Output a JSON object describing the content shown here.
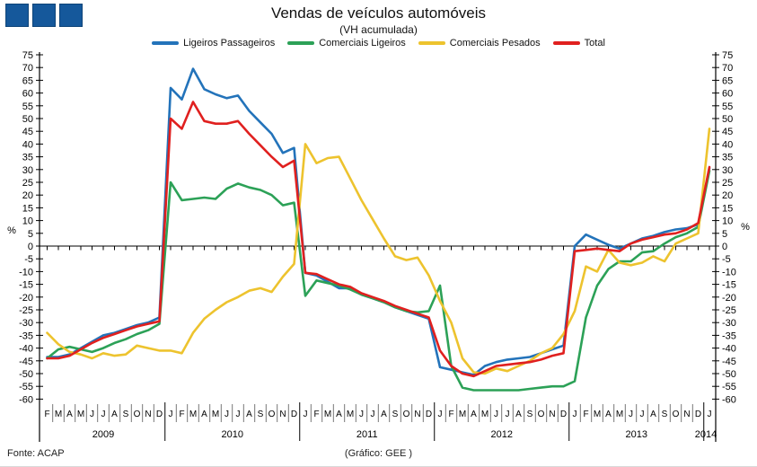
{
  "header": {
    "title": "Vendas de veículos automóveis",
    "subtitle": "(VH acumulada)"
  },
  "footer": {
    "source": "Fonte: ACAP",
    "credit": "(Gráfico: GEE )"
  },
  "logo": {
    "squares": 3,
    "color": "#15589B"
  },
  "chart_data": {
    "type": "line",
    "title": "Vendas de veículos automóveis",
    "subtitle": "(VH acumulada)",
    "ylabel": "%",
    "ylim": [
      -60,
      75
    ],
    "ytick_step": 5,
    "grid": "zero-line-only",
    "legend_position": "top-center",
    "x_months": [
      "F",
      "M",
      "A",
      "M",
      "J",
      "J",
      "A",
      "S",
      "O",
      "N",
      "D",
      "J",
      "F",
      "M",
      "A",
      "M",
      "J",
      "J",
      "A",
      "S",
      "O",
      "N",
      "D",
      "J",
      "F",
      "M",
      "A",
      "M",
      "J",
      "J",
      "A",
      "S",
      "O",
      "N",
      "D",
      "J",
      "F",
      "M",
      "A",
      "M",
      "J",
      "J",
      "A",
      "S",
      "O",
      "N",
      "D",
      "J",
      "F",
      "M",
      "A",
      "M",
      "J",
      "J",
      "A",
      "S",
      "O",
      "N",
      "D",
      "J"
    ],
    "year_groups": [
      {
        "label": "2009",
        "months": 11
      },
      {
        "label": "2010",
        "months": 12
      },
      {
        "label": "2011",
        "months": 12
      },
      {
        "label": "2012",
        "months": 12
      },
      {
        "label": "2013",
        "months": 12
      },
      {
        "label": "2014",
        "months": 1
      }
    ],
    "x_range": "Feb 2009 - Jan 2014",
    "series": [
      {
        "name": "Ligeiros Passageiros",
        "color": "#2373BA",
        "values": [
          -43.5,
          -43.5,
          -42.5,
          -40,
          -37.5,
          -35,
          -34,
          -32.5,
          -31,
          -30,
          -28,
          62,
          57.5,
          69.5,
          61.5,
          59.5,
          58,
          59,
          53,
          48.5,
          44,
          36.5,
          38.5,
          -10.5,
          -11.5,
          -14,
          -16.5,
          -16.5,
          -19,
          -20.5,
          -22,
          -24,
          -25.5,
          -27,
          -28.5,
          -47.5,
          -48.5,
          -49.5,
          -50.5,
          -47,
          -45.5,
          -44.5,
          -44,
          -43.5,
          -42,
          -40.5,
          -39,
          0,
          4.5,
          2.5,
          0.5,
          -1,
          1,
          3,
          4,
          5.5,
          6.5,
          7,
          8.5,
          30.5
        ]
      },
      {
        "name": "Comerciais Ligeiros",
        "color": "#2CA157",
        "values": [
          -44,
          -40.5,
          -39.5,
          -40.5,
          -41.5,
          -40,
          -38,
          -36.5,
          -34.5,
          -33,
          -30.5,
          25,
          18,
          18.5,
          19,
          18.5,
          22.5,
          24.5,
          23,
          22,
          20,
          16,
          17,
          -19.5,
          -13.5,
          -14.5,
          -15.5,
          -17,
          -19,
          -20.5,
          -22,
          -24,
          -25.5,
          -26,
          -25.5,
          -15.5,
          -47,
          -55.5,
          -56.5,
          -56.5,
          -56.5,
          -56.5,
          -56.5,
          -56,
          -55.5,
          -55,
          -55,
          -53,
          -28,
          -15.5,
          -9,
          -6,
          -6,
          -2.5,
          -2,
          1,
          3.5,
          5,
          7.5,
          29.5
        ]
      },
      {
        "name": "Comerciais Pesados",
        "color": "#EDC32E",
        "values": [
          -34,
          -38.5,
          -41.5,
          -42.5,
          -44,
          -42,
          -43,
          -42.5,
          -39,
          -40,
          -41,
          -41,
          -42,
          -34,
          -28.5,
          -25,
          -22,
          -20,
          -17.5,
          -16.5,
          -18,
          -12,
          -7,
          40,
          32.5,
          34.5,
          35,
          26.5,
          18,
          10.5,
          3,
          -4,
          -5.5,
          -4.5,
          -11.5,
          -21.5,
          -30,
          -44,
          -49.5,
          -50,
          -48,
          -49,
          -47,
          -45,
          -42,
          -40,
          -34.5,
          -25.5,
          -8,
          -10,
          -1.5,
          -6.5,
          -7.5,
          -6.5,
          -4,
          -6,
          1,
          3,
          5,
          46
        ]
      },
      {
        "name": "Total",
        "color": "#E0201F",
        "values": [
          -44,
          -44,
          -43,
          -40.5,
          -38,
          -36,
          -34.5,
          -33,
          -31.5,
          -30.5,
          -29.5,
          50,
          46,
          56.5,
          49,
          48,
          48,
          49,
          44,
          39.5,
          35,
          31,
          33.5,
          -10.5,
          -11,
          -13,
          -15,
          -16,
          -18.5,
          -20,
          -21.5,
          -23.5,
          -25,
          -26.5,
          -28,
          -41,
          -47,
          -50,
          -51,
          -49,
          -47,
          -46.5,
          -46,
          -45.5,
          -44.5,
          -43,
          -42,
          -2,
          -1.5,
          -1,
          -1.5,
          -2,
          1,
          2.5,
          3.5,
          4.5,
          5,
          6.5,
          9,
          31
        ]
      }
    ]
  }
}
